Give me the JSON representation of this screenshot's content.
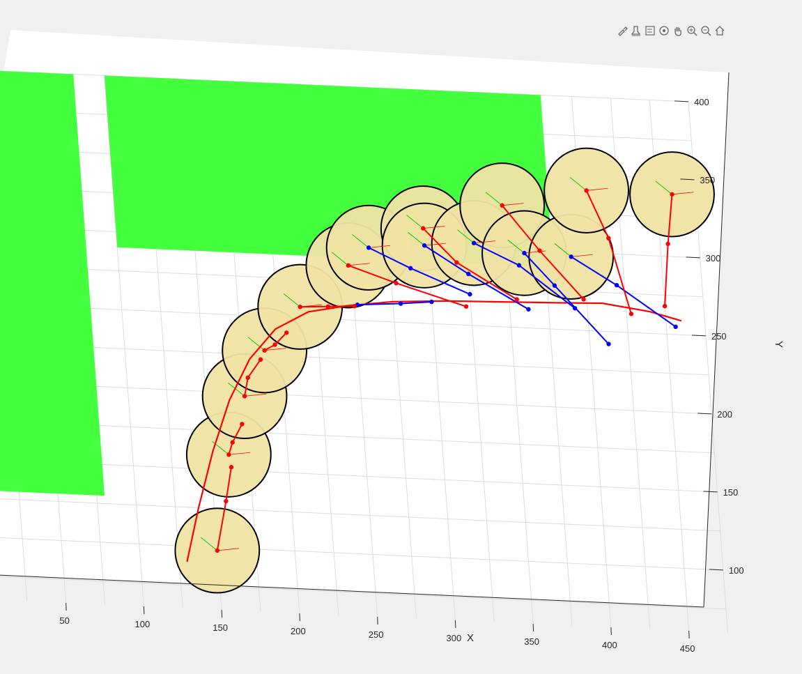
{
  "toolbar": {
    "buttons": [
      {
        "icon": "brush-select-icon"
      },
      {
        "icon": "data-tips-icon"
      },
      {
        "icon": "legend-icon"
      },
      {
        "icon": "rotate-3d-icon"
      },
      {
        "icon": "pan-hand-icon"
      },
      {
        "icon": "zoom-in-icon"
      },
      {
        "icon": "zoom-out-icon"
      },
      {
        "icon": "home-icon"
      }
    ]
  },
  "chart_data": {
    "type": "scatter",
    "title": "",
    "xlabel": "X",
    "ylabel": "Y",
    "xlim": [
      25,
      475
    ],
    "ylim": [
      60,
      400
    ],
    "xticks": [
      50,
      100,
      150,
      200,
      250,
      300,
      350,
      400,
      450
    ],
    "yticks": [
      100,
      150,
      200,
      250,
      300,
      350,
      400
    ],
    "grid": true,
    "colors": {
      "obstacle": "#43ff3d",
      "footprint_fill": "#efe3a4",
      "footprint_edge": "#000000",
      "path": "#ff0000",
      "trailer": "#0000ff",
      "heading": "#00cc00",
      "grid": "#dcdcdc"
    },
    "obstacles": [
      {
        "x": [
          0,
          80
        ],
        "y": [
          130,
          400
        ]
      },
      {
        "x": [
          100,
          380
        ],
        "y": [
          290,
          400
        ]
      }
    ],
    "footprint_radius": 27,
    "robot_poses": [
      {
        "x": 150,
        "y": 98
      },
      {
        "x": 162,
        "y": 160
      },
      {
        "x": 175,
        "y": 198
      },
      {
        "x": 190,
        "y": 228
      },
      {
        "x": 215,
        "y": 257
      },
      {
        "x": 248,
        "y": 285
      },
      {
        "x": 262,
        "y": 297
      },
      {
        "x": 298,
        "y": 311
      },
      {
        "x": 298,
        "y": 300
      },
      {
        "x": 330,
        "y": 303
      },
      {
        "x": 350,
        "y": 328
      },
      {
        "x": 362,
        "y": 298
      },
      {
        "x": 392,
        "y": 297
      },
      {
        "x": 405,
        "y": 340
      },
      {
        "x": 460,
        "y": 340
      }
    ],
    "reference_curve": {
      "x": [
        130,
        140,
        152,
        165,
        180,
        198,
        220,
        245,
        275,
        310,
        345,
        380,
        410,
        440,
        460
      ],
      "y": [
        90,
        125,
        162,
        195,
        222,
        242,
        254,
        259,
        263,
        265,
        266,
        267,
        268,
        264,
        259
      ]
    },
    "red_links": [
      {
        "x": [
          150,
          158,
          163
        ],
        "y": [
          98,
          130,
          152
        ]
      },
      {
        "x": [
          162,
          165,
          172
        ],
        "y": [
          160,
          168,
          180
        ]
      },
      {
        "x": [
          175,
          178,
          187
        ],
        "y": [
          198,
          210,
          222
        ]
      },
      {
        "x": [
          190,
          197,
          205
        ],
        "y": [
          228,
          232,
          240
        ]
      },
      {
        "x": [
          215,
          233,
          250
        ],
        "y": [
          257,
          258,
          259
        ]
      },
      {
        "x": [
          248,
          278,
          322
        ],
        "y": [
          285,
          275,
          262
        ]
      },
      {
        "x": [
          298,
          318,
          355
        ],
        "y": [
          311,
          290,
          268
        ]
      },
      {
        "x": [
          350,
          372,
          398
        ],
        "y": [
          328,
          300,
          270
        ]
      },
      {
        "x": [
          405,
          417,
          428
        ],
        "y": [
          340,
          310,
          262
        ]
      },
      {
        "x": [
          460,
          455,
          450
        ],
        "y": [
          340,
          308,
          268
        ]
      }
    ],
    "blue_links": [
      {
        "x": [
          262,
          288,
          325
        ],
        "y": [
          297,
          285,
          270
        ]
      },
      {
        "x": [
          298,
          325,
          362
        ],
        "y": [
          300,
          283,
          262
        ]
      },
      {
        "x": [
          330,
          358,
          392
        ],
        "y": [
          303,
          290,
          264
        ]
      },
      {
        "x": [
          362,
          380,
          412
        ],
        "y": [
          298,
          278,
          242
        ]
      },
      {
        "x": [
          392,
          420,
          456
        ],
        "y": [
          297,
          280,
          255
        ]
      },
      {
        "x": [
          252,
          280,
          300
        ],
        "y": [
          260,
          262,
          264
        ]
      }
    ]
  }
}
